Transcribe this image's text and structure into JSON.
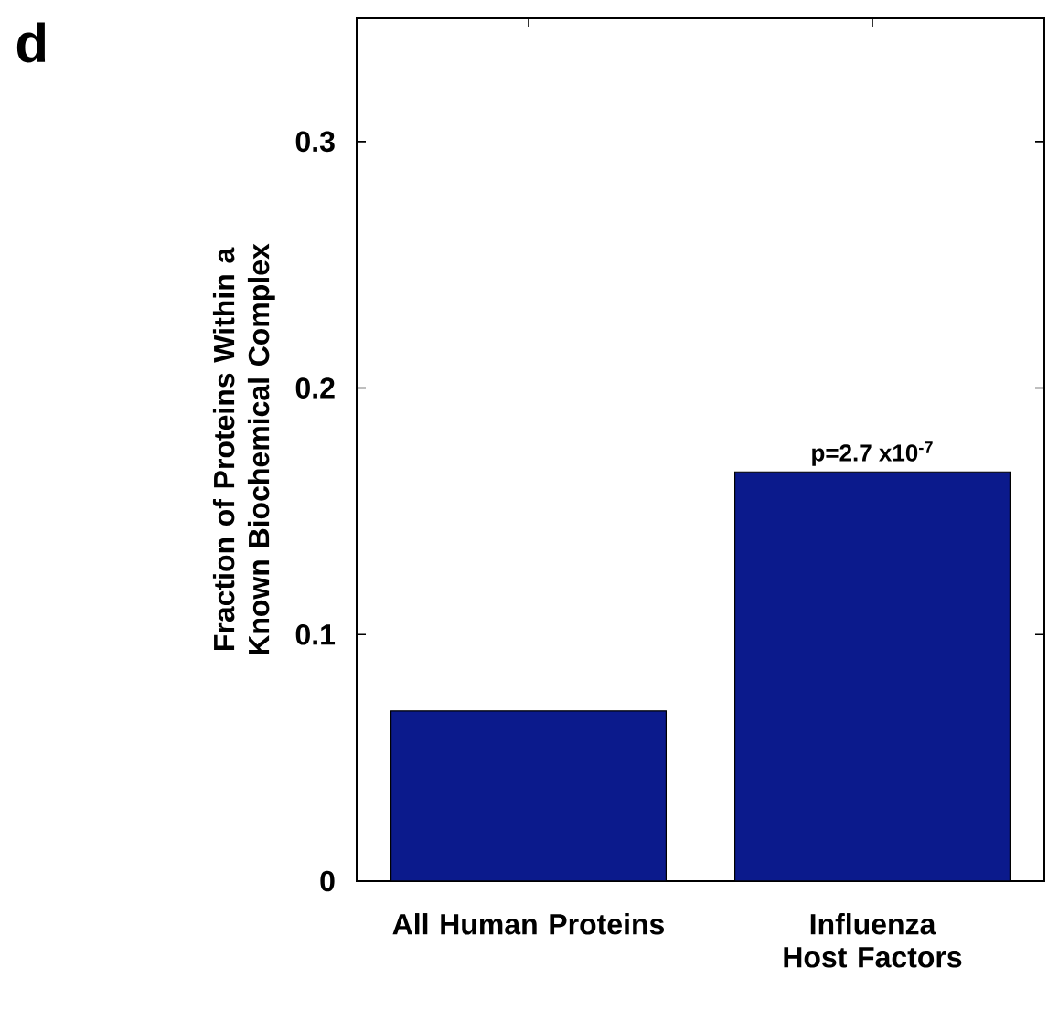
{
  "chart_data": {
    "type": "bar",
    "ylabel": "Fraction of Proteins Within a Known Biochemical Complex",
    "categories": [
      "All Human Proteins",
      "Influenza Host Factors"
    ],
    "values": [
      0.069,
      0.166
    ],
    "color": "#0b1a8c",
    "ylim": [
      0,
      0.35
    ],
    "yticks": [
      0,
      0.1,
      0.2,
      0.3
    ],
    "grid": false,
    "annotations": [
      "d",
      {
        "text": "p=2.7 x10$^{-7}$",
        "x": "Influenza Host Factors",
        "y": 0.166
      }
    ]
  }
}
